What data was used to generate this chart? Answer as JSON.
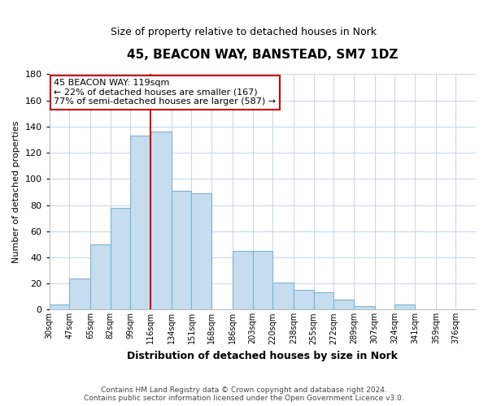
{
  "title": "45, BEACON WAY, BANSTEAD, SM7 1DZ",
  "subtitle": "Size of property relative to detached houses in Nork",
  "xlabel": "Distribution of detached houses by size in Nork",
  "ylabel": "Number of detached properties",
  "bin_labels": [
    "30sqm",
    "47sqm",
    "65sqm",
    "82sqm",
    "99sqm",
    "116sqm",
    "134sqm",
    "151sqm",
    "168sqm",
    "186sqm",
    "203sqm",
    "220sqm",
    "238sqm",
    "255sqm",
    "272sqm",
    "289sqm",
    "307sqm",
    "324sqm",
    "341sqm",
    "359sqm",
    "376sqm"
  ],
  "bar_heights": [
    4,
    24,
    50,
    78,
    133,
    136,
    91,
    89,
    0,
    45,
    45,
    21,
    15,
    13,
    8,
    3,
    0,
    4,
    0,
    0,
    0
  ],
  "bar_color": "#c6ddef",
  "bar_edge_color": "#7ab4d4",
  "vline_color": "#cc0000",
  "annotation_text_line1": "45 BEACON WAY: 119sqm",
  "annotation_text_line2": "← 22% of detached houses are smaller (167)",
  "annotation_text_line3": "77% of semi-detached houses are larger (587) →",
  "annotation_box_edge_color": "#cc0000",
  "ylim": [
    0,
    180
  ],
  "yticks": [
    0,
    20,
    40,
    60,
    80,
    100,
    120,
    140,
    160,
    180
  ],
  "footer_line1": "Contains HM Land Registry data © Crown copyright and database right 2024.",
  "footer_line2": "Contains public sector information licensed under the Open Government Licence v3.0.",
  "bin_edges": [
    30,
    47,
    65,
    82,
    99,
    116,
    134,
    151,
    168,
    186,
    203,
    220,
    238,
    255,
    272,
    289,
    307,
    324,
    341,
    359,
    376,
    393
  ]
}
